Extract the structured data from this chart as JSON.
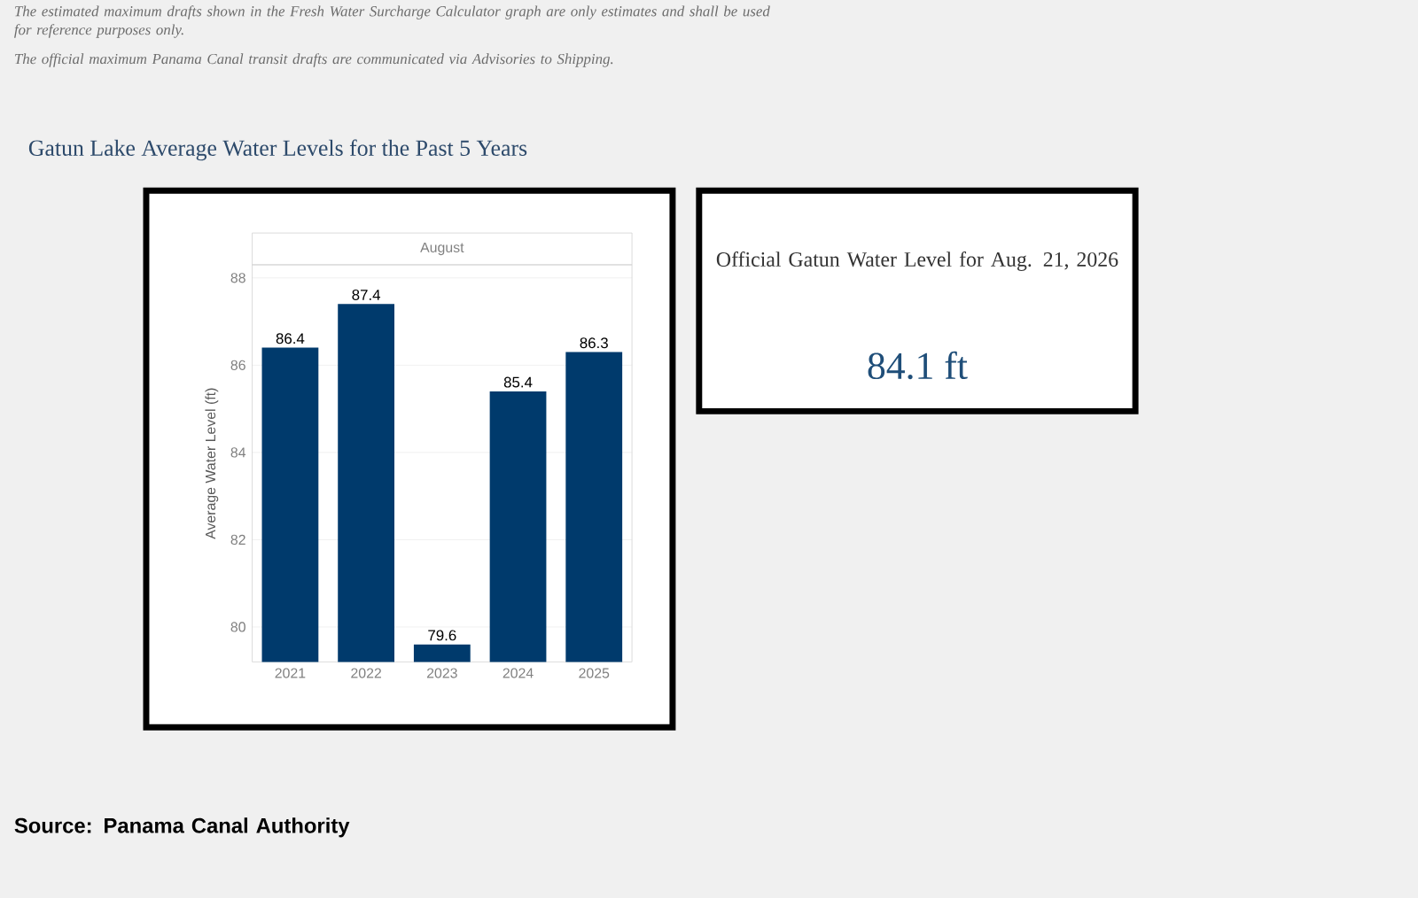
{
  "chart_data": [
    {
      "type": "bar",
      "title": "Gatun Lake Average Water Levels for the Past 5 Years",
      "subtitle": "August",
      "ylabel": "Average Water Level (ft)",
      "categories": [
        "2021",
        "2022",
        "2023",
        "2024",
        "2025"
      ],
      "values": [
        86.4,
        87.4,
        79.6,
        85.4,
        86.3
      ],
      "color": "#003a6c",
      "ylim": [
        79.2,
        88.3
      ],
      "yticks": [
        80,
        82,
        84,
        86,
        88
      ],
      "grid": "y",
      "data_labels": true,
      "annotations": [
        "The estimated maximum drafts shown in the Fresh Water Surcharge Calculator graph are only estimates and shall be used for reference purposes only.",
        "The official maximum Panama Canal transit drafts are communicated via Advisories to Shipping.",
        "Source: Panama Canal Authority"
      ]
    },
    {
      "type": "other",
      "title": "Official Gatun Water Level for Aug. 21, 2026",
      "annotations": [
        "84.1 ft"
      ]
    }
  ]
}
